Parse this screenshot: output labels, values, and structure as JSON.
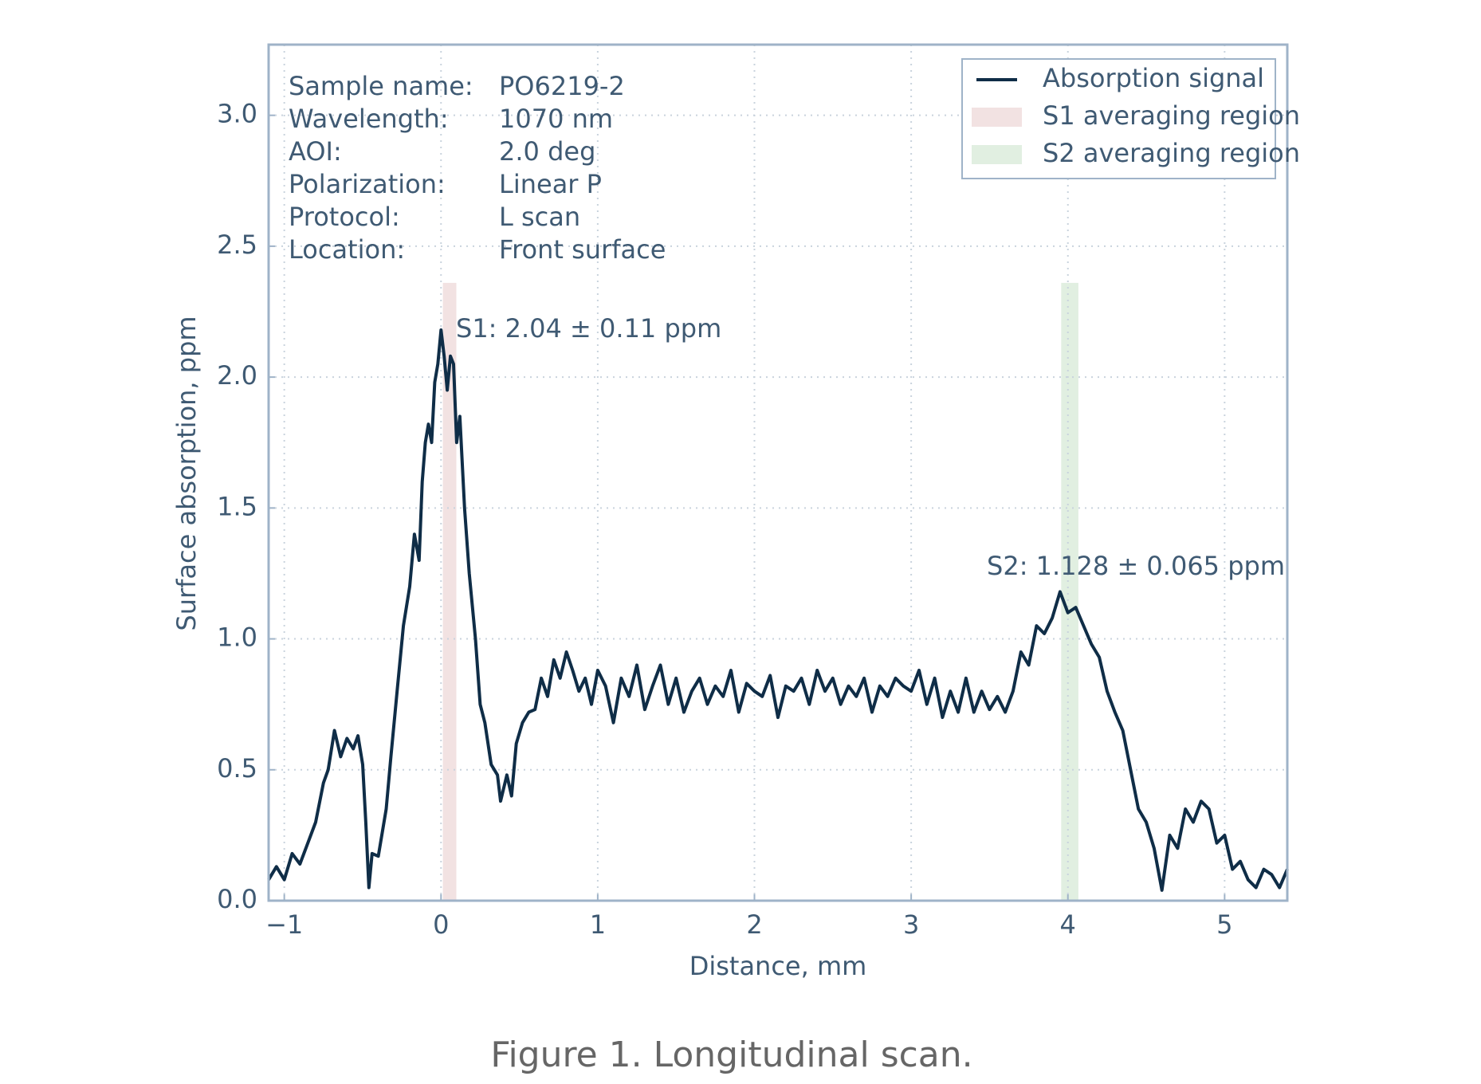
{
  "chart_data": {
    "type": "line",
    "caption": "Figure 1. Longitudinal scan.",
    "xlabel": "Distance, mm",
    "ylabel": "Surface absorption, ppm",
    "xlim": [
      -1.1,
      5.4
    ],
    "ylim": [
      0,
      3.27
    ],
    "xticks": [
      {
        "value": -1,
        "label": "−1"
      },
      0,
      1,
      2,
      3,
      4,
      5
    ],
    "yticks": [
      {
        "value": 0,
        "label": "0.0"
      },
      0.5,
      {
        "value": 1,
        "label": "1.0"
      },
      1.5,
      {
        "value": 2,
        "label": "2.0"
      },
      2.5,
      {
        "value": 3,
        "label": "3.0"
      }
    ],
    "grid": true,
    "legend": "upper right",
    "info": [
      {
        "label": "Sample name:",
        "value": "PO6219-2"
      },
      {
        "label": "Wavelength:",
        "value": "1070 nm"
      },
      {
        "label": "AOI:",
        "value": "2.0 deg"
      },
      {
        "label": "Polarization:",
        "value": "Linear P"
      },
      {
        "label": "Protocol:",
        "value": "L scan"
      },
      {
        "label": "Location:",
        "value": "Front surface"
      }
    ],
    "regions": [
      {
        "name": "S1 averaging region",
        "color": "#f2e2e2",
        "x": [
          0.012,
          0.098
        ],
        "height": 2.36,
        "annotation": "S1: 2.04 ± 0.11 ppm"
      },
      {
        "name": "S2 averaging region",
        "color": "#e1efe1",
        "x": [
          3.957,
          4.067
        ],
        "height": 2.36,
        "annotation": "S2: 1.128 ± 0.065 ppm"
      }
    ],
    "x": [
      -1.1,
      -1.05,
      -1.0,
      -0.95,
      -0.9,
      -0.85,
      -0.8,
      -0.75,
      -0.72,
      -0.68,
      -0.64,
      -0.6,
      -0.56,
      -0.53,
      -0.5,
      -0.48,
      -0.46,
      -0.44,
      -0.4,
      -0.35,
      -0.32,
      -0.28,
      -0.24,
      -0.2,
      -0.17,
      -0.14,
      -0.12,
      -0.1,
      -0.08,
      -0.06,
      -0.04,
      -0.02,
      0.0,
      0.02,
      0.04,
      0.06,
      0.08,
      0.1,
      0.12,
      0.15,
      0.18,
      0.22,
      0.25,
      0.28,
      0.32,
      0.36,
      0.38,
      0.42,
      0.45,
      0.48,
      0.52,
      0.56,
      0.6,
      0.64,
      0.68,
      0.72,
      0.76,
      0.8,
      0.84,
      0.88,
      0.92,
      0.96,
      1.0,
      1.05,
      1.1,
      1.15,
      1.2,
      1.25,
      1.3,
      1.35,
      1.4,
      1.45,
      1.5,
      1.55,
      1.6,
      1.65,
      1.7,
      1.75,
      1.8,
      1.85,
      1.9,
      1.95,
      2.0,
      2.05,
      2.1,
      2.15,
      2.2,
      2.25,
      2.3,
      2.35,
      2.4,
      2.45,
      2.5,
      2.55,
      2.6,
      2.65,
      2.7,
      2.75,
      2.8,
      2.85,
      2.9,
      2.95,
      3.0,
      3.05,
      3.1,
      3.15,
      3.2,
      3.25,
      3.3,
      3.35,
      3.4,
      3.45,
      3.5,
      3.55,
      3.6,
      3.65,
      3.7,
      3.75,
      3.8,
      3.85,
      3.9,
      3.95,
      4.0,
      4.05,
      4.1,
      4.15,
      4.2,
      4.25,
      4.3,
      4.35,
      4.4,
      4.45,
      4.5,
      4.55,
      4.6,
      4.65,
      4.7,
      4.75,
      4.8,
      4.85,
      4.9,
      4.95,
      5.0,
      5.05,
      5.1,
      5.15,
      5.2,
      5.25,
      5.3,
      5.35,
      5.4
    ],
    "series": [
      {
        "name": "Absorption signal",
        "color": "#0f2d47",
        "values": [
          0.08,
          0.13,
          0.08,
          0.18,
          0.14,
          0.22,
          0.3,
          0.45,
          0.5,
          0.65,
          0.55,
          0.62,
          0.58,
          0.63,
          0.52,
          0.3,
          0.05,
          0.18,
          0.17,
          0.35,
          0.55,
          0.8,
          1.05,
          1.2,
          1.4,
          1.3,
          1.6,
          1.75,
          1.82,
          1.75,
          1.98,
          2.05,
          2.18,
          2.08,
          1.95,
          2.08,
          2.05,
          1.75,
          1.85,
          1.5,
          1.25,
          1.0,
          0.75,
          0.68,
          0.52,
          0.48,
          0.38,
          0.48,
          0.4,
          0.6,
          0.68,
          0.72,
          0.73,
          0.85,
          0.78,
          0.92,
          0.85,
          0.95,
          0.88,
          0.8,
          0.85,
          0.75,
          0.88,
          0.82,
          0.68,
          0.85,
          0.78,
          0.9,
          0.73,
          0.82,
          0.9,
          0.75,
          0.85,
          0.72,
          0.8,
          0.85,
          0.75,
          0.82,
          0.78,
          0.88,
          0.72,
          0.83,
          0.8,
          0.78,
          0.86,
          0.7,
          0.82,
          0.8,
          0.85,
          0.75,
          0.88,
          0.8,
          0.85,
          0.75,
          0.82,
          0.78,
          0.85,
          0.72,
          0.82,
          0.78,
          0.85,
          0.82,
          0.8,
          0.88,
          0.75,
          0.85,
          0.7,
          0.8,
          0.72,
          0.85,
          0.72,
          0.8,
          0.73,
          0.78,
          0.72,
          0.8,
          0.95,
          0.9,
          1.05,
          1.02,
          1.08,
          1.18,
          1.1,
          1.12,
          1.05,
          0.98,
          0.93,
          0.8,
          0.72,
          0.65,
          0.5,
          0.35,
          0.3,
          0.2,
          0.04,
          0.25,
          0.2,
          0.35,
          0.3,
          0.38,
          0.35,
          0.22,
          0.25,
          0.12,
          0.15,
          0.08,
          0.05,
          0.12,
          0.1,
          0.05,
          0.12
        ]
      }
    ]
  }
}
